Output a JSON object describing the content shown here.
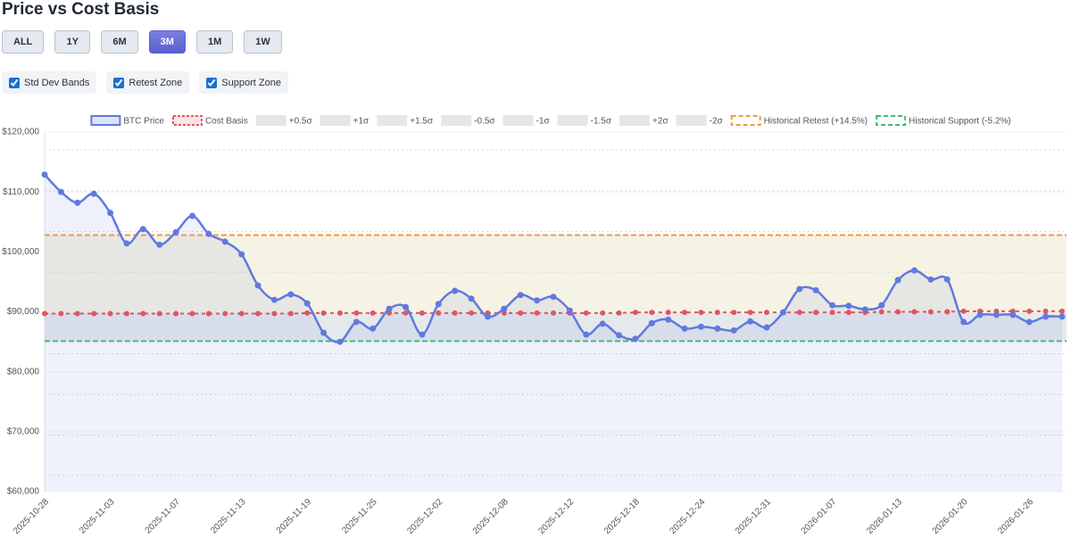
{
  "title": "Price vs Cost Basis",
  "buttons": [
    {
      "label": "ALL",
      "active": false
    },
    {
      "label": "1Y",
      "active": false
    },
    {
      "label": "6M",
      "active": false
    },
    {
      "label": "3M",
      "active": true
    },
    {
      "label": "1M",
      "active": false
    },
    {
      "label": "1W",
      "active": false
    }
  ],
  "checkboxes": [
    {
      "label": "Std Dev Bands",
      "checked": true
    },
    {
      "label": "Retest Zone",
      "checked": true
    },
    {
      "label": "Support Zone",
      "checked": true
    }
  ],
  "chart_data": {
    "type": "line",
    "categories": [
      "2025-10-28",
      null,
      null,
      null,
      "2025-11-03",
      null,
      null,
      null,
      "2025-11-07",
      null,
      null,
      null,
      "2025-11-13",
      null,
      null,
      null,
      "2025-11-19",
      null,
      null,
      null,
      "2025-11-25",
      null,
      null,
      null,
      "2025-12-02",
      null,
      null,
      null,
      "2025-12-08",
      null,
      null,
      null,
      "2025-12-12",
      null,
      null,
      null,
      "2025-12-18",
      null,
      null,
      null,
      "2025-12-24",
      null,
      null,
      null,
      "2025-12-31",
      null,
      null,
      null,
      "2026-01-07",
      null,
      null,
      null,
      "2026-01-13",
      null,
      null,
      null,
      "2026-01-20",
      null,
      null,
      null,
      "2026-01-26",
      null,
      null
    ],
    "series": [
      {
        "name": "BTC Price",
        "color": "#6179e0",
        "values": [
          112900,
          110000,
          108200,
          109700,
          106500,
          101400,
          103800,
          101200,
          103300,
          106000,
          103000,
          101700,
          99600,
          94400,
          92000,
          92900,
          91400,
          86500,
          85000,
          88300,
          87200,
          90500,
          90800,
          86200,
          91300,
          93500,
          92200,
          89200,
          90500,
          92800,
          91900,
          92500,
          90200,
          86200,
          88000,
          86100,
          85500,
          88100,
          88700,
          87200,
          87500,
          87200,
          86900,
          88400,
          87400,
          89900,
          93800,
          93600,
          91100,
          91000,
          90400,
          91100,
          95300,
          96900,
          95400,
          95400,
          88300,
          89500,
          89500,
          89500,
          88300,
          89200,
          89200
        ]
      },
      {
        "name": "Cost Basis",
        "color": "#e05561",
        "values": [
          89700,
          89700,
          89700,
          89700,
          89700,
          89700,
          89700,
          89700,
          89700,
          89700,
          89700,
          89700,
          89700,
          89700,
          89700,
          89700,
          89800,
          89800,
          89800,
          89800,
          89800,
          89800,
          89800,
          89800,
          89800,
          89800,
          89800,
          89800,
          89800,
          89800,
          89800,
          89800,
          89800,
          89800,
          89800,
          89800,
          89900,
          89900,
          89900,
          89900,
          89900,
          89900,
          89900,
          89900,
          89900,
          89900,
          89900,
          89900,
          89900,
          89900,
          89900,
          90000,
          90000,
          90000,
          90000,
          90000,
          90100,
          90100,
          90100,
          90100,
          90100,
          90100,
          90100
        ]
      }
    ],
    "bands": [
      {
        "name": "+0.5σ",
        "value": 96600
      },
      {
        "name": "+1σ",
        "value": 103400
      },
      {
        "name": "+1.5σ",
        "value": 110200
      },
      {
        "name": "-0.5σ",
        "value": 83000
      },
      {
        "name": "-1σ",
        "value": 76200
      },
      {
        "name": "-1.5σ",
        "value": 69400
      },
      {
        "name": "+2σ",
        "value": 117000
      },
      {
        "name": "-2σ",
        "value": 62700
      }
    ],
    "levels": [
      {
        "name": "Historical Retest (+14.5%)",
        "value": 102800,
        "color": "#ee9a48"
      },
      {
        "name": "Historical Support (-5.2%)",
        "value": 85100,
        "color": "#49b878"
      }
    ],
    "ylim": [
      60000,
      120000
    ],
    "yticks": [
      {
        "value": 60000,
        "label": "$60,000"
      },
      {
        "value": 70000,
        "label": "$70,000"
      },
      {
        "value": 80000,
        "label": "$80,000"
      },
      {
        "value": 90000,
        "label": "$90,000"
      },
      {
        "value": 100000,
        "label": "$100,000"
      },
      {
        "value": 110000,
        "label": "$110,000"
      },
      {
        "value": 120000,
        "label": "$120,000"
      }
    ],
    "grid": true
  }
}
